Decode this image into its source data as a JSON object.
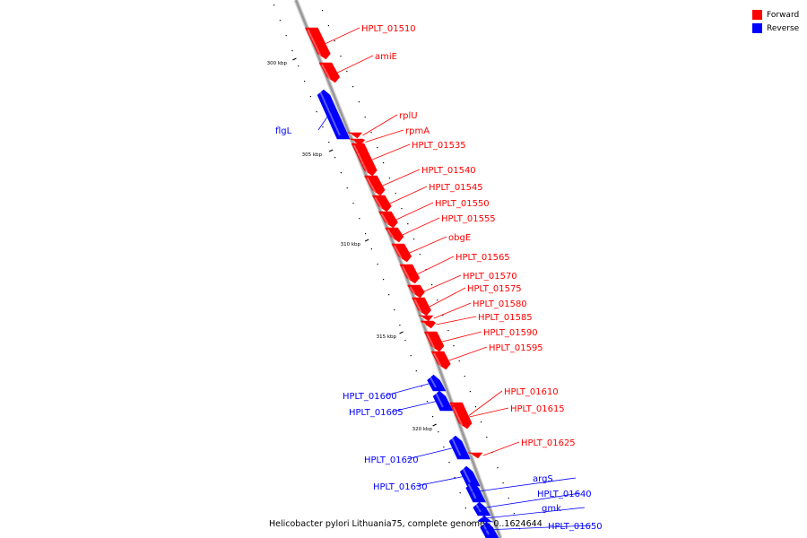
{
  "colors": {
    "forward": "#ff0000",
    "reverse": "#0000ff",
    "backbone": "#999999"
  },
  "legend": {
    "forward": "Forward",
    "reverse": "Reverse"
  },
  "caption": "Helicobacter pylori Lithuania75, complete genome - 0..1624644",
  "ticks": [
    "300 kbp",
    "305 kbp",
    "310 kbp",
    "315 kbp",
    "320 kbp"
  ],
  "genes": [
    {
      "name": "HPLT_01510",
      "strand": "forward"
    },
    {
      "name": "amiE",
      "strand": "forward"
    },
    {
      "name": "flgL",
      "strand": "reverse"
    },
    {
      "name": "rplU",
      "strand": "forward"
    },
    {
      "name": "rpmA",
      "strand": "forward"
    },
    {
      "name": "HPLT_01535",
      "strand": "forward"
    },
    {
      "name": "HPLT_01540",
      "strand": "forward"
    },
    {
      "name": "HPLT_01545",
      "strand": "forward"
    },
    {
      "name": "HPLT_01550",
      "strand": "forward"
    },
    {
      "name": "HPLT_01555",
      "strand": "forward"
    },
    {
      "name": "obgE",
      "strand": "forward"
    },
    {
      "name": "HPLT_01565",
      "strand": "forward"
    },
    {
      "name": "HPLT_01570",
      "strand": "forward"
    },
    {
      "name": "HPLT_01575",
      "strand": "forward"
    },
    {
      "name": "HPLT_01580",
      "strand": "forward"
    },
    {
      "name": "HPLT_01585",
      "strand": "forward"
    },
    {
      "name": "HPLT_01590",
      "strand": "forward"
    },
    {
      "name": "HPLT_01595",
      "strand": "forward"
    },
    {
      "name": "HPLT_01600",
      "strand": "reverse"
    },
    {
      "name": "HPLT_01605",
      "strand": "reverse"
    },
    {
      "name": "HPLT_01610",
      "strand": "forward"
    },
    {
      "name": "HPLT_01615",
      "strand": "forward"
    },
    {
      "name": "HPLT_01620",
      "strand": "reverse"
    },
    {
      "name": "HPLT_01625",
      "strand": "forward"
    },
    {
      "name": "HPLT_01630",
      "strand": "reverse"
    },
    {
      "name": "argS",
      "strand": "reverse"
    },
    {
      "name": "HPLT_01640",
      "strand": "reverse"
    },
    {
      "name": "gmk",
      "strand": "reverse"
    },
    {
      "name": "HPLT_01650",
      "strand": "reverse"
    }
  ]
}
